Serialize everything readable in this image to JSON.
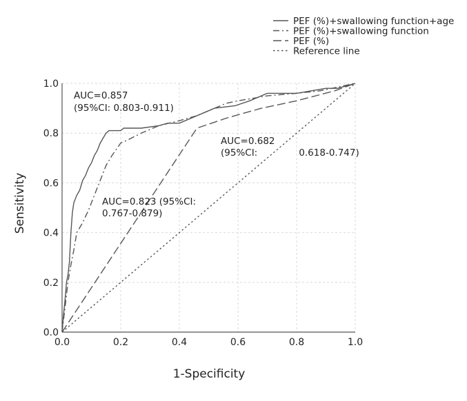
{
  "chart_data": {
    "type": "line",
    "title": "",
    "xlabel": "1-Specificity",
    "ylabel": "Sensitivity",
    "xlim": [
      0,
      1
    ],
    "ylim": [
      0,
      1
    ],
    "x_ticks": [
      "0.0",
      "0.2",
      "0.4",
      "0.6",
      "0.8",
      "1.0"
    ],
    "y_ticks": [
      "0.0",
      "0.2",
      "0.4",
      "0.6",
      "0.8",
      "1.0"
    ],
    "grid": true,
    "legend_position": "top-right",
    "series": [
      {
        "name": "PEF (%)+swallowing function+age",
        "line_style": "solid",
        "x": [
          0,
          0.005,
          0.01,
          0.015,
          0.02,
          0.025,
          0.03,
          0.035,
          0.04,
          0.05,
          0.06,
          0.07,
          0.08,
          0.09,
          0.1,
          0.11,
          0.12,
          0.13,
          0.14,
          0.15,
          0.16,
          0.2,
          0.21,
          0.23,
          0.27,
          0.33,
          0.36,
          0.4,
          0.52,
          0.59,
          0.64,
          0.7,
          0.75,
          0.8,
          0.85,
          0.9,
          0.94,
          1.0
        ],
        "y": [
          0,
          0.07,
          0.13,
          0.2,
          0.23,
          0.28,
          0.4,
          0.48,
          0.52,
          0.55,
          0.57,
          0.61,
          0.63,
          0.66,
          0.68,
          0.71,
          0.73,
          0.76,
          0.78,
          0.8,
          0.81,
          0.81,
          0.82,
          0.82,
          0.82,
          0.83,
          0.84,
          0.84,
          0.9,
          0.91,
          0.93,
          0.96,
          0.96,
          0.96,
          0.97,
          0.98,
          0.98,
          1.0
        ]
      },
      {
        "name": "PEF (%)+swallowing function",
        "line_style": "dash-dot",
        "x": [
          0,
          0.01,
          0.02,
          0.03,
          0.04,
          0.05,
          0.07,
          0.09,
          0.11,
          0.13,
          0.15,
          0.17,
          0.2,
          0.22,
          0.27,
          0.33,
          0.4,
          0.46,
          0.52,
          0.56,
          0.6,
          0.7,
          0.8,
          0.88,
          0.92,
          0.96,
          1.0
        ],
        "y": [
          0,
          0.1,
          0.2,
          0.27,
          0.33,
          0.4,
          0.44,
          0.49,
          0.55,
          0.61,
          0.67,
          0.71,
          0.76,
          0.77,
          0.8,
          0.83,
          0.85,
          0.87,
          0.9,
          0.92,
          0.93,
          0.95,
          0.96,
          0.97,
          0.98,
          0.99,
          1.0
        ]
      },
      {
        "name": "PEF (%)",
        "line_style": "long-dash",
        "x": [
          0,
          0.46,
          0.56,
          0.68,
          0.8,
          0.93,
          1.0
        ],
        "y": [
          0,
          0.82,
          0.86,
          0.9,
          0.93,
          0.97,
          1.0
        ]
      },
      {
        "name": "Reference line",
        "line_style": "dotted",
        "x": [
          0,
          1
        ],
        "y": [
          0,
          1
        ]
      }
    ],
    "annotations": [
      {
        "line1": "AUC=0.857",
        "line2": "(95%CI: 0.803-0.911)"
      },
      {
        "line1": "AUC=0.682",
        "line2": "(95%CI:              0.618-0.747)"
      },
      {
        "line1": "AUC=0.823 (95%CI:",
        "line2": "0.767-0.879)"
      }
    ]
  }
}
